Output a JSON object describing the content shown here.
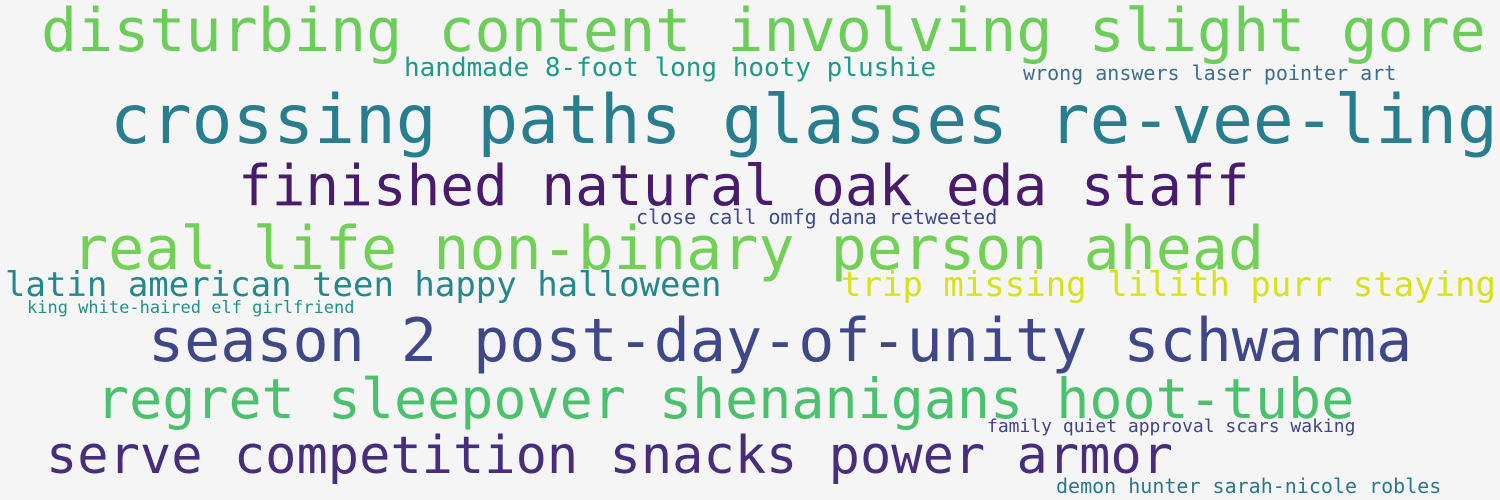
{
  "word_cloud": {
    "background": "#f5f5f5",
    "words": [
      {
        "text": "disturbing content involving slight gore",
        "color": "#6ccd5a"
      },
      {
        "text": "handmade 8-foot long hooty plushie",
        "color": "#1f9a8a"
      },
      {
        "text": "wrong answers laser pointer art",
        "color": "#3e6d8e"
      },
      {
        "text": "crossing paths glasses re-vee-ling",
        "color": "#287d8e"
      },
      {
        "text": "finished natural oak eda staff",
        "color": "#481b6d"
      },
      {
        "text": "close call omfg dana retweeted",
        "color": "#3e4c8a"
      },
      {
        "text": "real life non-binary person ahead",
        "color": "#73d056"
      },
      {
        "text": "latin american teen happy halloween",
        "color": "#23888e"
      },
      {
        "text": "trip missing lilith purr staying",
        "color": "#d8e219"
      },
      {
        "text": "king white-haired elf girlfriend",
        "color": "#20928c"
      },
      {
        "text": "season 2 post-day-of-unity schwarma",
        "color": "#3f4788"
      },
      {
        "text": "regret sleepover shenanigans hoot-tube",
        "color": "#4ac16d"
      },
      {
        "text": "family quiet approval scars waking",
        "color": "#414487"
      },
      {
        "text": "serve competition snacks power armor",
        "color": "#472d7b"
      },
      {
        "text": "demon hunter sarah-nicole robles",
        "color": "#2a788e"
      }
    ]
  }
}
